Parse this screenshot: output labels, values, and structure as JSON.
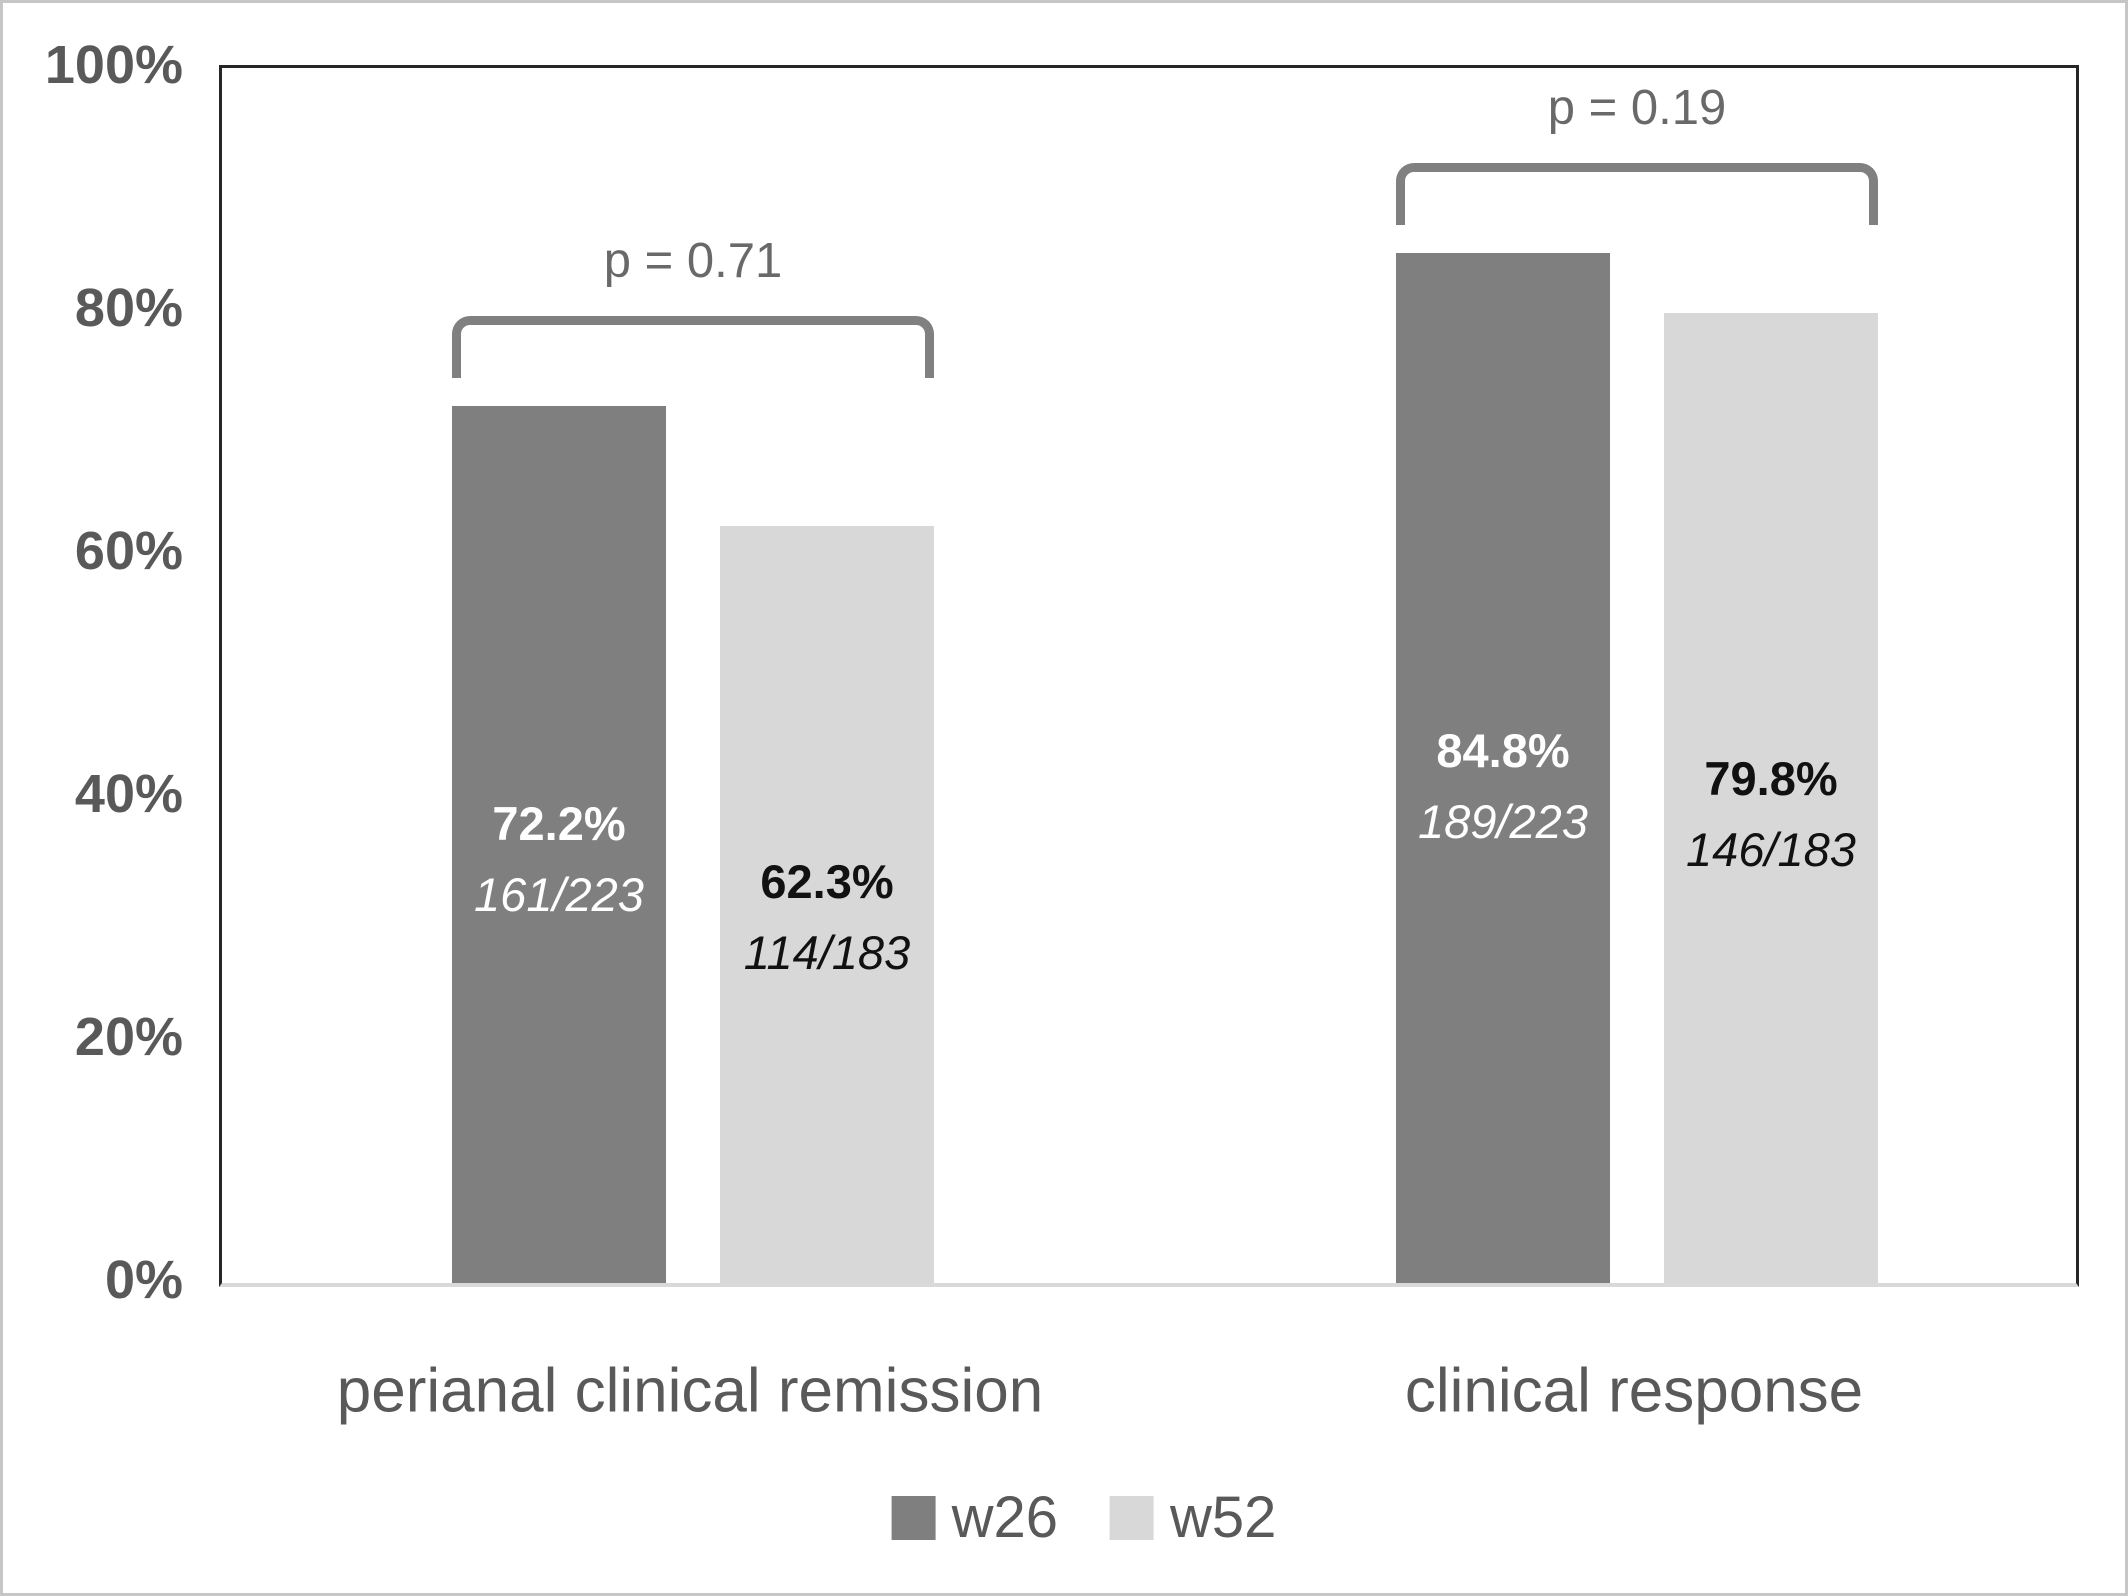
{
  "chart_data": {
    "type": "bar",
    "categories": [
      "perianal clinical remission",
      "clinical response"
    ],
    "series": [
      {
        "name": "w26",
        "color": "#7f7f7f",
        "label_color": "#ffffff",
        "values": [
          72.2,
          84.8
        ],
        "value_labels": [
          "72.2%",
          "84.8%"
        ],
        "fraction_labels": [
          "161/223",
          "189/223"
        ]
      },
      {
        "name": "w52",
        "color": "#d8d8d8",
        "label_color": "#111111",
        "values": [
          62.3,
          79.8
        ],
        "value_labels": [
          "62.3%",
          "79.8%"
        ],
        "fraction_labels": [
          "114/183",
          "146/183"
        ]
      }
    ],
    "p_values": [
      "p = 0.71",
      "p = 0.19"
    ],
    "y_ticks": [
      {
        "label": "100%",
        "value": 100
      },
      {
        "label": "80%",
        "value": 80
      },
      {
        "label": "60%",
        "value": 60
      },
      {
        "label": "40%",
        "value": 40
      },
      {
        "label": "20%",
        "value": 20
      },
      {
        "label": "0%",
        "value": 0
      }
    ],
    "ylim": [
      0,
      100
    ],
    "grid": false,
    "legend_position": "bottom",
    "legend": [
      "w26",
      "w52"
    ],
    "title": "",
    "xlabel": "",
    "ylabel": ""
  },
  "colors": {
    "bar_w26": "#7f7f7f",
    "bar_w52": "#d8d8d8",
    "bracket": "#808080",
    "p_text": "#696969",
    "axis_text": "#595959",
    "axis_border": "#262626",
    "baseline": "#d9d9d9"
  }
}
